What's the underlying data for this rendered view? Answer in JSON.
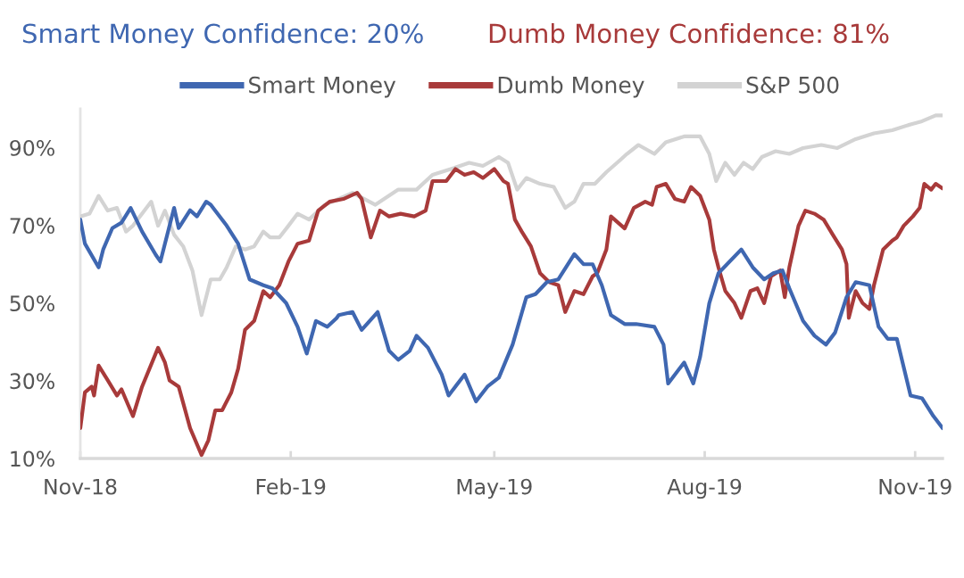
{
  "chart_data": {
    "type": "line",
    "title": "Smart Money Confidence: 20%",
    "subtitle": "Dumb Money Confidence: 81%",
    "xlim": [
      "2018-11-01",
      "2019-11-13"
    ],
    "xticks": [
      {
        "value": "2018-11-01",
        "label": "Nov-18"
      },
      {
        "value": "2019-02-01",
        "label": "Feb-19"
      },
      {
        "value": "2019-05-01",
        "label": "May-19"
      },
      {
        "value": "2019-08-01",
        "label": "Aug-19"
      },
      {
        "value": "2019-11-01",
        "label": "Nov-19"
      }
    ],
    "ylim": [
      10,
      100
    ],
    "yticks": [
      {
        "value": 10,
        "label": "10%"
      },
      {
        "value": 30,
        "label": "30%"
      },
      {
        "value": 50,
        "label": "50%"
      },
      {
        "value": 70,
        "label": "70%"
      },
      {
        "value": 90,
        "label": "90%"
      }
    ],
    "legend": "top",
    "series": [
      {
        "name": "Smart Money",
        "color": "#3f67b1",
        "x": [
          "2018-11-01",
          "2018-11-03",
          "2018-11-09",
          "2018-11-11",
          "2018-11-15",
          "2018-11-19",
          "2018-11-23",
          "2018-11-28",
          "2018-12-04",
          "2018-12-06",
          "2018-12-12",
          "2018-12-14",
          "2018-12-19",
          "2018-12-22",
          "2018-12-26",
          "2018-12-28",
          "2019-01-04",
          "2019-01-09",
          "2019-01-14",
          "2019-01-20",
          "2019-01-24",
          "2019-01-30",
          "2019-02-04",
          "2019-02-08",
          "2019-02-12",
          "2019-02-17",
          "2019-02-21",
          "2019-02-22",
          "2019-02-28",
          "2019-03-04",
          "2019-03-11",
          "2019-03-16",
          "2019-03-20",
          "2019-03-25",
          "2019-03-28",
          "2019-04-02",
          "2019-04-08",
          "2019-04-11",
          "2019-04-18",
          "2019-04-23",
          "2019-04-28",
          "2019-05-03",
          "2019-05-09",
          "2019-05-15",
          "2019-05-19",
          "2019-05-24",
          "2019-05-29",
          "2019-06-05",
          "2019-06-09",
          "2019-06-13",
          "2019-06-17",
          "2019-06-21",
          "2019-06-27",
          "2019-07-02",
          "2019-07-10",
          "2019-07-14",
          "2019-07-16",
          "2019-07-23",
          "2019-07-27",
          "2019-07-30",
          "2019-08-03",
          "2019-08-07",
          "2019-08-17",
          "2019-08-22",
          "2019-08-27",
          "2019-08-31",
          "2019-09-04",
          "2019-09-07",
          "2019-09-13",
          "2019-09-18",
          "2019-09-23",
          "2019-09-27",
          "2019-10-02",
          "2019-10-06",
          "2019-10-12",
          "2019-10-16",
          "2019-10-20",
          "2019-10-24",
          "2019-10-30",
          "2019-11-04",
          "2019-11-09",
          "2019-11-13"
        ],
        "values": [
          71.5,
          65.3,
          59.2,
          63.8,
          69.3,
          70.7,
          74.5,
          68.4,
          62.4,
          60.7,
          74.5,
          69.3,
          73.9,
          72.3,
          76.1,
          75.3,
          69.9,
          65.3,
          56.1,
          54.6,
          53.8,
          50.0,
          43.9,
          37.0,
          45.4,
          43.9,
          46.1,
          46.9,
          47.7,
          43.1,
          47.7,
          37.7,
          35.4,
          37.7,
          41.6,
          38.5,
          31.6,
          26.2,
          31.6,
          24.7,
          28.5,
          30.8,
          39.3,
          51.5,
          52.3,
          55.4,
          56.1,
          62.6,
          60.0,
          60.0,
          54.6,
          46.9,
          44.6,
          44.6,
          43.9,
          39.3,
          29.3,
          34.7,
          29.3,
          36.2,
          50.0,
          57.7,
          63.8,
          59.2,
          56.1,
          57.7,
          58.4,
          53.8,
          45.4,
          41.6,
          39.3,
          42.4,
          51.5,
          55.4,
          54.6,
          43.9,
          40.8,
          40.8,
          26.2,
          25.5,
          20.9,
          17.8
        ]
      },
      {
        "name": "Dumb Money",
        "color": "#a83a3a",
        "x": [
          "2018-11-01",
          "2018-11-03",
          "2018-11-06",
          "2018-11-07",
          "2018-11-09",
          "2018-11-13",
          "2018-11-17",
          "2018-11-19",
          "2018-11-24",
          "2018-11-28",
          "2018-12-05",
          "2018-12-08",
          "2018-12-10",
          "2018-12-14",
          "2018-12-19",
          "2018-12-24",
          "2018-12-27",
          "2018-12-30",
          "2019-01-02",
          "2019-01-06",
          "2019-01-09",
          "2019-01-12",
          "2019-01-16",
          "2019-01-20",
          "2019-01-23",
          "2019-01-27",
          "2019-01-31",
          "2019-02-04",
          "2019-02-09",
          "2019-02-13",
          "2019-02-18",
          "2019-02-24",
          "2019-03-02",
          "2019-03-04",
          "2019-03-08",
          "2019-03-12",
          "2019-03-16",
          "2019-03-21",
          "2019-03-27",
          "2019-04-01",
          "2019-04-04",
          "2019-04-10",
          "2019-04-14",
          "2019-04-18",
          "2019-04-22",
          "2019-04-26",
          "2019-05-01",
          "2019-05-05",
          "2019-05-07",
          "2019-05-10",
          "2019-05-13",
          "2019-05-17",
          "2019-05-21",
          "2019-05-25",
          "2019-05-29",
          "2019-06-01",
          "2019-06-05",
          "2019-06-09",
          "2019-06-13",
          "2019-06-15",
          "2019-06-19",
          "2019-06-21",
          "2019-06-27",
          "2019-07-01",
          "2019-07-06",
          "2019-07-09",
          "2019-07-11",
          "2019-07-15",
          "2019-07-19",
          "2019-07-23",
          "2019-07-26",
          "2019-07-30",
          "2019-08-03",
          "2019-08-05",
          "2019-08-07",
          "2019-08-10",
          "2019-08-14",
          "2019-08-17",
          "2019-08-21",
          "2019-08-24",
          "2019-08-27",
          "2019-08-30",
          "2019-09-03",
          "2019-09-05",
          "2019-09-07",
          "2019-09-11",
          "2019-09-14",
          "2019-09-18",
          "2019-09-22",
          "2019-09-26",
          "2019-09-30",
          "2019-10-02",
          "2019-10-03",
          "2019-10-06",
          "2019-10-09",
          "2019-10-12",
          "2019-10-14",
          "2019-10-18",
          "2019-10-22",
          "2019-10-24",
          "2019-10-27",
          "2019-10-31",
          "2019-11-03",
          "2019-11-05",
          "2019-11-08",
          "2019-11-10",
          "2019-11-13"
        ],
        "values": [
          17.8,
          27.0,
          28.5,
          26.2,
          33.9,
          30.1,
          26.2,
          27.8,
          20.9,
          28.5,
          38.5,
          34.7,
          30.1,
          28.5,
          17.8,
          10.9,
          14.7,
          22.4,
          22.4,
          27.0,
          33.1,
          43.1,
          45.4,
          53.1,
          51.5,
          54.6,
          60.7,
          65.3,
          66.1,
          73.8,
          76.1,
          76.8,
          78.4,
          76.8,
          66.9,
          73.8,
          72.3,
          73.0,
          72.3,
          73.8,
          81.4,
          81.4,
          84.5,
          83.0,
          83.7,
          82.2,
          84.5,
          81.4,
          80.7,
          71.5,
          68.4,
          64.6,
          57.7,
          55.4,
          54.6,
          47.7,
          53.1,
          52.3,
          56.9,
          57.7,
          63.8,
          72.3,
          69.2,
          74.5,
          76.1,
          75.3,
          79.9,
          80.7,
          76.8,
          76.1,
          79.9,
          77.6,
          71.5,
          63.8,
          59.2,
          53.1,
          50.0,
          46.2,
          53.1,
          53.8,
          50.0,
          56.9,
          58.4,
          51.5,
          59.2,
          69.9,
          73.8,
          73.0,
          71.5,
          67.6,
          63.8,
          60.0,
          46.2,
          53.1,
          50.0,
          48.5,
          54.6,
          63.8,
          66.1,
          66.9,
          69.9,
          72.3,
          74.5,
          80.7,
          79.2,
          80.7,
          79.5
        ]
      },
      {
        "name": "S&P 500",
        "color": "#d3d3d3",
        "x": [
          "2018-11-01",
          "2018-11-05",
          "2018-11-09",
          "2018-11-13",
          "2018-11-17",
          "2018-11-21",
          "2018-11-24",
          "2018-11-28",
          "2018-12-02",
          "2018-12-05",
          "2018-12-08",
          "2018-12-12",
          "2018-12-16",
          "2018-12-20",
          "2018-12-24",
          "2018-12-28",
          "2019-01-01",
          "2019-01-04",
          "2019-01-08",
          "2019-01-12",
          "2019-01-16",
          "2019-01-20",
          "2019-01-23",
          "2019-01-27",
          "2019-01-31",
          "2019-02-04",
          "2019-02-09",
          "2019-02-16",
          "2019-02-28",
          "2019-03-10",
          "2019-03-20",
          "2019-03-28",
          "2019-04-04",
          "2019-04-12",
          "2019-04-20",
          "2019-04-26",
          "2019-05-03",
          "2019-05-07",
          "2019-05-11",
          "2019-05-15",
          "2019-05-21",
          "2019-05-27",
          "2019-06-01",
          "2019-06-05",
          "2019-06-09",
          "2019-06-14",
          "2019-06-19",
          "2019-06-25",
          "2019-06-28",
          "2019-07-03",
          "2019-07-10",
          "2019-07-15",
          "2019-07-23",
          "2019-07-30",
          "2019-08-03",
          "2019-08-06",
          "2019-08-10",
          "2019-08-14",
          "2019-08-18",
          "2019-08-22",
          "2019-08-26",
          "2019-09-01",
          "2019-09-07",
          "2019-09-13",
          "2019-09-21",
          "2019-09-28",
          "2019-10-06",
          "2019-10-14",
          "2019-10-22",
          "2019-10-30",
          "2019-11-04",
          "2019-11-10",
          "2019-11-13"
        ],
        "values": [
          72.3,
          73.0,
          77.6,
          73.8,
          74.5,
          68.4,
          69.9,
          73.0,
          76.1,
          69.9,
          73.8,
          67.6,
          64.6,
          58.4,
          46.9,
          56.1,
          56.1,
          59.2,
          64.6,
          63.8,
          64.6,
          68.4,
          66.9,
          66.9,
          69.9,
          73.0,
          71.5,
          75.3,
          78.4,
          75.3,
          79.2,
          79.2,
          83.0,
          84.5,
          86.1,
          85.3,
          87.6,
          86.1,
          79.2,
          82.2,
          80.7,
          79.9,
          74.5,
          76.1,
          80.7,
          80.7,
          83.7,
          86.8,
          88.4,
          90.7,
          88.4,
          91.4,
          92.9,
          92.9,
          88.4,
          81.4,
          86.1,
          83.0,
          86.1,
          84.5,
          87.6,
          89.1,
          88.4,
          89.9,
          90.7,
          89.9,
          92.2,
          93.7,
          94.5,
          96.0,
          96.8,
          98.3,
          98.3
        ]
      }
    ]
  }
}
